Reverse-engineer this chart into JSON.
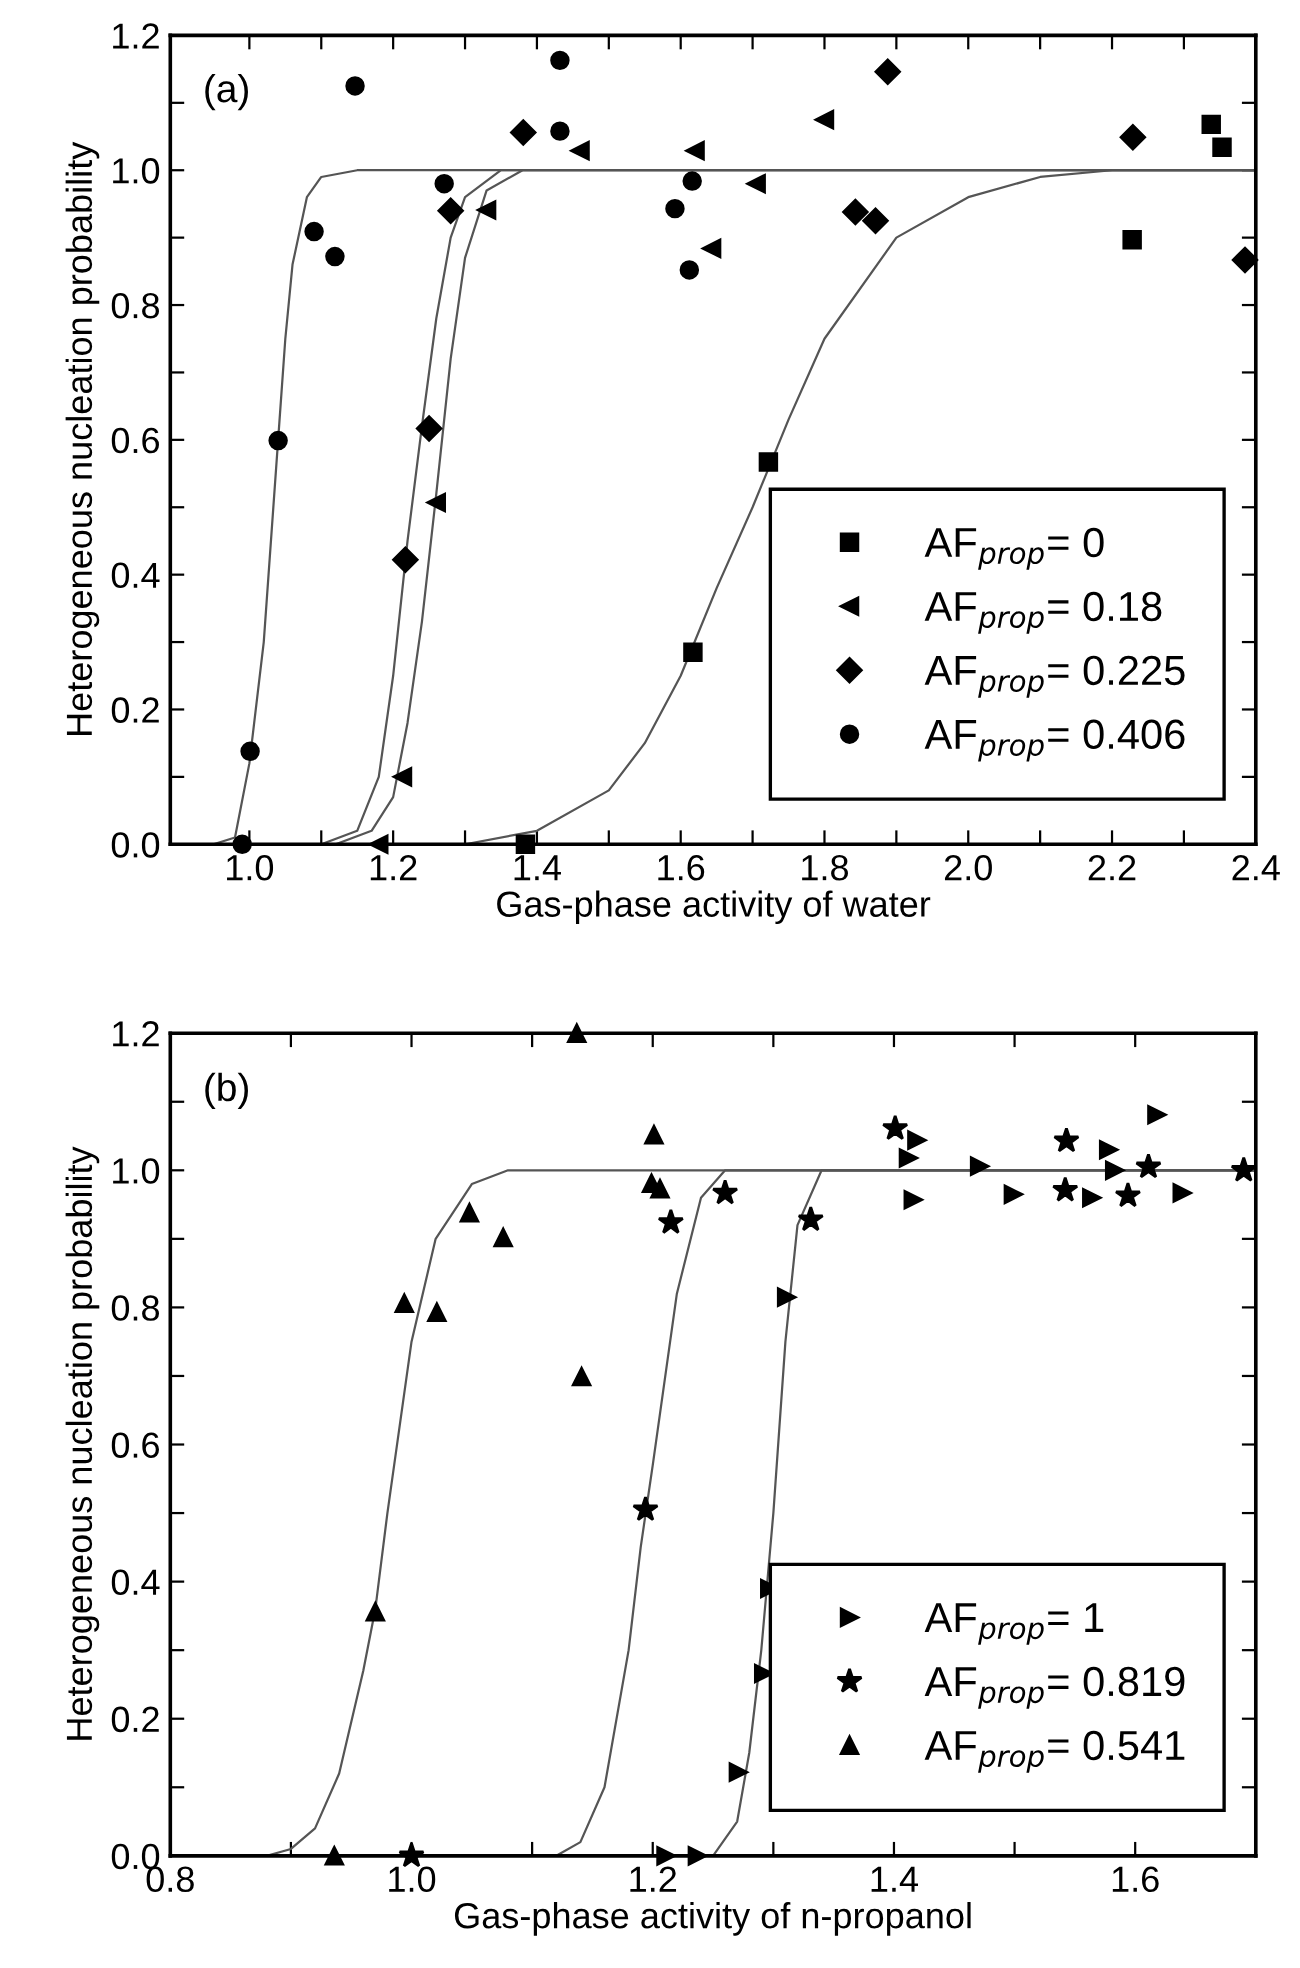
{
  "chart_data": [
    {
      "type": "scatter",
      "xlabel": "Gas-phase activity of water",
      "ylabel": "Heterogeneous nucleation probability",
      "annotations": [
        "(a)"
      ],
      "xlim": [
        0.89,
        2.4
      ],
      "ylim": [
        0,
        1.2
      ],
      "xticks": [
        {
          "value": 1.0,
          "label": "1.0"
        },
        {
          "value": 1.1,
          "label": null
        },
        {
          "value": 1.2,
          "label": "1.2"
        },
        {
          "value": 1.3,
          "label": null
        },
        {
          "value": 1.4,
          "label": "1.4"
        },
        {
          "value": 1.5,
          "label": null
        },
        {
          "value": 1.6,
          "label": "1.6"
        },
        {
          "value": 1.7,
          "label": null
        },
        {
          "value": 1.8,
          "label": "1.8"
        },
        {
          "value": 1.9,
          "label": null
        },
        {
          "value": 2.0,
          "label": "2.0"
        },
        {
          "value": 2.1,
          "label": null
        },
        {
          "value": 2.2,
          "label": "2.2"
        },
        {
          "value": 2.3,
          "label": null
        },
        {
          "value": 2.4,
          "label": "2.4"
        }
      ],
      "yticks": [
        {
          "value": 0,
          "label": "0.0"
        },
        {
          "value": 0.1,
          "label": null
        },
        {
          "value": 0.2,
          "label": "0.2"
        },
        {
          "value": 0.3,
          "label": null
        },
        {
          "value": 0.4,
          "label": "0.4"
        },
        {
          "value": 0.5,
          "label": null
        },
        {
          "value": 0.6,
          "label": "0.6"
        },
        {
          "value": 0.7,
          "label": null
        },
        {
          "value": 0.8,
          "label": "0.8"
        },
        {
          "value": 0.9,
          "label": null
        },
        {
          "value": 1.0,
          "label": "1.0"
        },
        {
          "value": 1.1,
          "label": null
        },
        {
          "value": 1.2,
          "label": "1.2"
        }
      ],
      "grid": false,
      "legend": "bottom right",
      "series": [
        {
          "name": "AF$_{prop}$= 0",
          "color": "#000000",
          "marker": "square",
          "x": [
            1.384,
            1.617,
            1.722,
            2.228,
            2.338,
            2.353
          ],
          "values": [
            0,
            0.285,
            0.567,
            0.897,
            1.068,
            1.034
          ]
        },
        {
          "name": "AF$_{prop}$= 0.18",
          "color": "#000000",
          "marker": "triangle_left",
          "x": [
            1.18,
            1.213,
            1.26,
            1.33,
            1.46,
            1.62,
            1.643,
            1.705,
            1.8
          ],
          "values": [
            0,
            0.1,
            0.507,
            0.941,
            1.029,
            1.029,
            0.884,
            0.98,
            1.075
          ]
        },
        {
          "name": "AF$_{prop}$= 0.225",
          "color": "#000000",
          "marker": "diamond",
          "x": [
            1.217,
            1.25,
            1.28,
            1.381,
            1.843,
            1.871,
            1.888,
            2.229,
            2.385
          ],
          "values": [
            0.422,
            0.617,
            0.94,
            1.056,
            0.938,
            0.925,
            1.146,
            1.049,
            0.867
          ]
        },
        {
          "name": "AF$_{prop}$= 0.406",
          "color": "#000000",
          "marker": "circle",
          "x": [
            0.99,
            1.001,
            1.04,
            1.09,
            1.119,
            1.147,
            1.271,
            1.432,
            1.432,
            1.592,
            1.612,
            1.616
          ],
          "values": [
            0,
            0.138,
            0.599,
            0.909,
            0.872,
            1.125,
            0.98,
            1.163,
            1.058,
            0.943,
            0.852,
            0.984
          ]
        },
        {
          "type": "line",
          "color": "#555555",
          "line_style": "solid",
          "x": [
            0.95,
            0.98,
            1.0,
            1.02,
            1.04,
            1.05,
            1.06,
            1.08,
            1.1,
            1.15,
            2.4
          ],
          "values": [
            0,
            0.01,
            0.12,
            0.3,
            0.6,
            0.75,
            0.86,
            0.96,
            0.99,
            1.0,
            1.0
          ]
        },
        {
          "type": "line",
          "color": "#555555",
          "line_style": "solid",
          "x": [
            1.1,
            1.15,
            1.18,
            1.2,
            1.22,
            1.24,
            1.26,
            1.28,
            1.3,
            1.35,
            2.4
          ],
          "values": [
            0,
            0.02,
            0.1,
            0.25,
            0.45,
            0.62,
            0.78,
            0.9,
            0.96,
            1.0,
            1.0
          ]
        },
        {
          "type": "line",
          "color": "#555555",
          "line_style": "solid",
          "x": [
            1.12,
            1.17,
            1.2,
            1.22,
            1.24,
            1.26,
            1.28,
            1.3,
            1.33,
            1.38,
            2.4
          ],
          "values": [
            0,
            0.02,
            0.07,
            0.18,
            0.33,
            0.52,
            0.72,
            0.87,
            0.97,
            1.0,
            1.0
          ]
        },
        {
          "type": "line",
          "color": "#555555",
          "line_style": "solid",
          "x": [
            1.3,
            1.4,
            1.5,
            1.55,
            1.6,
            1.65,
            1.7,
            1.75,
            1.8,
            1.9,
            2.0,
            2.1,
            2.2,
            2.4
          ],
          "values": [
            0,
            0.02,
            0.08,
            0.15,
            0.25,
            0.38,
            0.5,
            0.63,
            0.75,
            0.9,
            0.96,
            0.99,
            1.0,
            1.0
          ]
        }
      ]
    },
    {
      "type": "scatter",
      "xlabel": "Gas-phase activity of n-propanol",
      "ylabel": "Heterogeneous nucleation probability",
      "annotations": [
        "(b)"
      ],
      "xlim": [
        0.8,
        1.7
      ],
      "ylim": [
        0,
        1.2
      ],
      "xticks": [
        {
          "value": 0.8,
          "label": "0.8"
        },
        {
          "value": 0.9,
          "label": null
        },
        {
          "value": 1.0,
          "label": "1.0"
        },
        {
          "value": 1.1,
          "label": null
        },
        {
          "value": 1.2,
          "label": "1.2"
        },
        {
          "value": 1.3,
          "label": null
        },
        {
          "value": 1.4,
          "label": "1.4"
        },
        {
          "value": 1.5,
          "label": null
        },
        {
          "value": 1.6,
          "label": "1.6"
        }
      ],
      "yticks": [
        {
          "value": 0,
          "label": "0.0"
        },
        {
          "value": 0.1,
          "label": null
        },
        {
          "value": 0.2,
          "label": "0.2"
        },
        {
          "value": 0.3,
          "label": null
        },
        {
          "value": 0.4,
          "label": "0.4"
        },
        {
          "value": 0.5,
          "label": null
        },
        {
          "value": 0.6,
          "label": "0.6"
        },
        {
          "value": 0.7,
          "label": null
        },
        {
          "value": 0.8,
          "label": "0.8"
        },
        {
          "value": 0.9,
          "label": null
        },
        {
          "value": 1.0,
          "label": "1.0"
        },
        {
          "value": 1.1,
          "label": null
        },
        {
          "value": 1.2,
          "label": "1.2"
        }
      ],
      "grid": false,
      "legend": "bottom right",
      "series": [
        {
          "name": "AF$_{prop}$= 1",
          "color": "#000000",
          "marker": "triangle_right",
          "x": [
            1.211,
            1.237,
            1.271,
            1.292,
            1.297,
            1.311,
            1.412,
            1.416,
            1.419,
            1.471,
            1.499,
            1.564,
            1.578,
            1.583,
            1.618,
            1.639
          ],
          "values": [
            0,
            0,
            0.122,
            0.266,
            0.39,
            0.815,
            1.018,
            0.957,
            1.044,
            1.006,
            0.965,
            0.96,
            1.03,
            1.0,
            1.081,
            0.967
          ]
        },
        {
          "name": "AF$_{prop}$= 0.819",
          "color": "#000000",
          "marker": "star",
          "x": [
            1.0,
            1.194,
            1.215,
            1.26,
            1.331,
            1.401,
            1.542,
            1.543,
            1.594,
            1.611,
            1.69
          ],
          "values": [
            0,
            0.505,
            0.924,
            0.967,
            0.928,
            1.061,
            0.971,
            1.043,
            0.963,
            1.005,
            1.0
          ]
        },
        {
          "name": "AF$_{prop}$= 0.541",
          "color": "#000000",
          "marker": "triangle",
          "x": [
            0.936,
            0.97,
            0.994,
            1.021,
            1.048,
            1.076,
            1.137,
            1.141,
            1.199,
            1.201,
            1.206
          ],
          "values": [
            0,
            0.356,
            0.806,
            0.793,
            0.938,
            0.902,
            1.2,
            0.699,
            0.981,
            1.052,
            0.973
          ]
        },
        {
          "type": "line",
          "color": "#555555",
          "line_style": "solid",
          "x": [
            0.88,
            0.9,
            0.92,
            0.94,
            0.96,
            0.97,
            0.98,
            1.0,
            1.02,
            1.05,
            1.08,
            1.7
          ],
          "values": [
            0,
            0.01,
            0.04,
            0.12,
            0.27,
            0.36,
            0.5,
            0.75,
            0.9,
            0.98,
            1.0,
            1.0
          ]
        },
        {
          "type": "line",
          "color": "#555555",
          "line_style": "solid",
          "x": [
            1.12,
            1.14,
            1.16,
            1.18,
            1.19,
            1.2,
            1.22,
            1.24,
            1.26,
            1.7
          ],
          "values": [
            0,
            0.02,
            0.1,
            0.3,
            0.45,
            0.57,
            0.82,
            0.96,
            1.0,
            1.0
          ]
        },
        {
          "type": "line",
          "color": "#555555",
          "line_style": "solid",
          "x": [
            1.25,
            1.27,
            1.28,
            1.29,
            1.3,
            1.31,
            1.32,
            1.34,
            1.7
          ],
          "values": [
            0,
            0.05,
            0.15,
            0.3,
            0.5,
            0.75,
            0.92,
            1.0,
            1.0
          ]
        }
      ]
    }
  ]
}
